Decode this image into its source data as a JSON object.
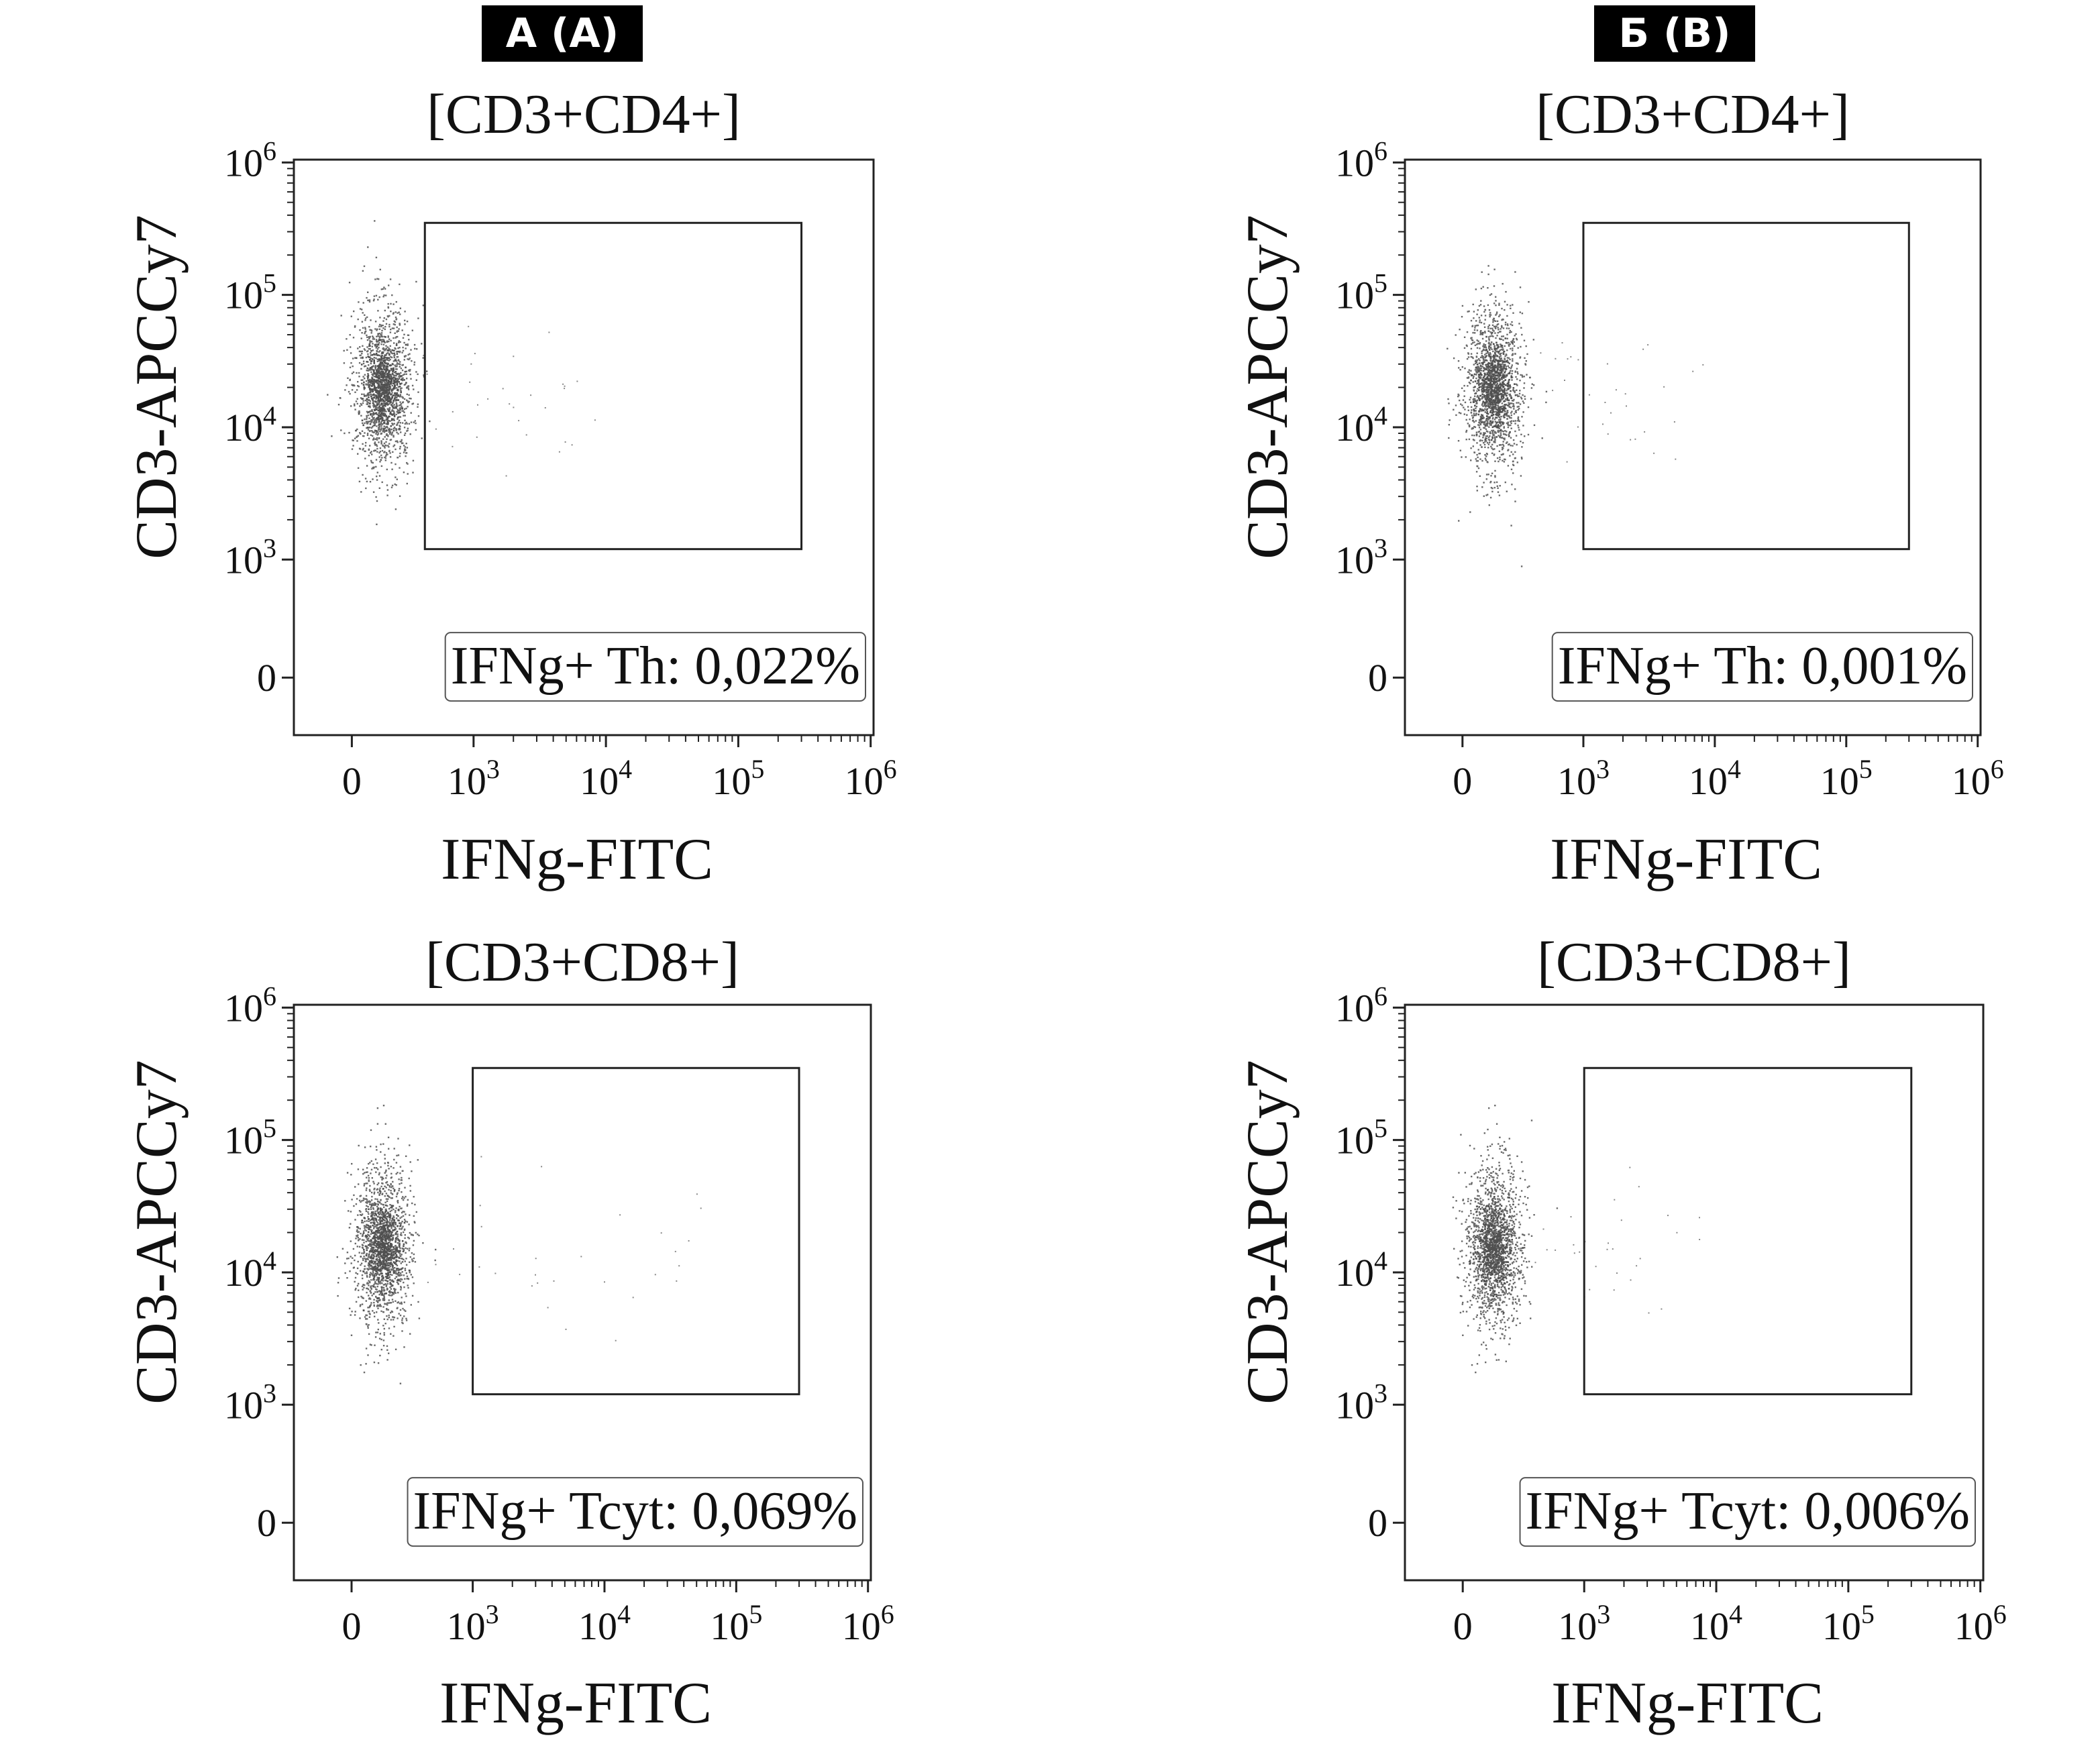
{
  "columns": [
    {
      "label": "А (A)"
    },
    {
      "label": "Б (B)"
    }
  ],
  "chart_data": [
    {
      "type": "scatter",
      "column": "А (A)",
      "title": "[CD3+CD4+]",
      "xlabel": "IFNg-FITC",
      "ylabel": "CD3-APCCy7",
      "x_ticks": [
        {
          "base": "0",
          "exp": ""
        },
        {
          "base": "10",
          "exp": "3"
        },
        {
          "base": "10",
          "exp": "4"
        },
        {
          "base": "10",
          "exp": "5"
        },
        {
          "base": "10",
          "exp": "6"
        }
      ],
      "y_ticks": [
        {
          "base": "0",
          "exp": ""
        },
        {
          "base": "10",
          "exp": "3"
        },
        {
          "base": "10",
          "exp": "4"
        },
        {
          "base": "10",
          "exp": "5"
        },
        {
          "base": "10",
          "exp": "6"
        }
      ],
      "gate_annotation": "IFNg+ Th: 0,022%",
      "gate": {
        "x": [
          600,
          300000
        ],
        "y": [
          1200,
          350000
        ]
      },
      "cluster": {
        "x_center": 250,
        "y_center": 20000
      },
      "gate_percent": 0.022
    },
    {
      "type": "scatter",
      "column": "Б (B)",
      "title": "[CD3+CD4+]",
      "xlabel": "IFNg-FITC",
      "ylabel": "CD3-APCCy7",
      "x_ticks": [
        {
          "base": "0",
          "exp": ""
        },
        {
          "base": "10",
          "exp": "3"
        },
        {
          "base": "10",
          "exp": "4"
        },
        {
          "base": "10",
          "exp": "5"
        },
        {
          "base": "10",
          "exp": "6"
        }
      ],
      "y_ticks": [
        {
          "base": "0",
          "exp": ""
        },
        {
          "base": "10",
          "exp": "3"
        },
        {
          "base": "10",
          "exp": "4"
        },
        {
          "base": "10",
          "exp": "5"
        },
        {
          "base": "10",
          "exp": "6"
        }
      ],
      "gate_annotation": "IFNg+ Th: 0,001%",
      "gate": {
        "x": [
          1000,
          300000
        ],
        "y": [
          1200,
          350000
        ]
      },
      "cluster": {
        "x_center": 250,
        "y_center": 20000
      },
      "gate_percent": 0.001
    },
    {
      "type": "scatter",
      "column": "А (A)",
      "title": "[CD3+CD8+]",
      "xlabel": "IFNg-FITC",
      "ylabel": "CD3-APCCy7",
      "x_ticks": [
        {
          "base": "0",
          "exp": ""
        },
        {
          "base": "10",
          "exp": "3"
        },
        {
          "base": "10",
          "exp": "4"
        },
        {
          "base": "10",
          "exp": "5"
        },
        {
          "base": "10",
          "exp": "6"
        }
      ],
      "y_ticks": [
        {
          "base": "0",
          "exp": ""
        },
        {
          "base": "10",
          "exp": "3"
        },
        {
          "base": "10",
          "exp": "4"
        },
        {
          "base": "10",
          "exp": "5"
        },
        {
          "base": "10",
          "exp": "6"
        }
      ],
      "gate_annotation": "IFNg+ Tcyt: 0,069%",
      "gate": {
        "x": [
          1000,
          300000
        ],
        "y": [
          1200,
          350000
        ]
      },
      "cluster": {
        "x_center": 250,
        "y_center": 16000
      },
      "gate_percent": 0.069
    },
    {
      "type": "scatter",
      "column": "Б (B)",
      "title": "[CD3+CD8+]",
      "xlabel": "IFNg-FITC",
      "ylabel": "CD3-APCCy7",
      "x_ticks": [
        {
          "base": "0",
          "exp": ""
        },
        {
          "base": "10",
          "exp": "3"
        },
        {
          "base": "10",
          "exp": "4"
        },
        {
          "base": "10",
          "exp": "5"
        },
        {
          "base": "10",
          "exp": "6"
        }
      ],
      "y_ticks": [
        {
          "base": "0",
          "exp": ""
        },
        {
          "base": "10",
          "exp": "3"
        },
        {
          "base": "10",
          "exp": "4"
        },
        {
          "base": "10",
          "exp": "5"
        },
        {
          "base": "10",
          "exp": "6"
        }
      ],
      "gate_annotation": "IFNg+ Tcyt: 0,006%",
      "gate": {
        "x": [
          1000,
          300000
        ],
        "y": [
          1200,
          350000
        ]
      },
      "cluster": {
        "x_center": 250,
        "y_center": 16000
      },
      "gate_percent": 0.006
    }
  ]
}
